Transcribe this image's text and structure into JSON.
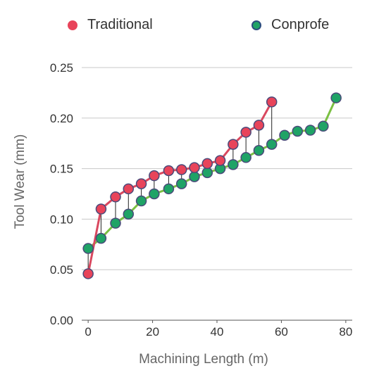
{
  "chart_data": {
    "type": "line",
    "xlabel": "Machining Length (m)",
    "ylabel": "Tool Wear (mm)",
    "xlim": [
      -2,
      82
    ],
    "ylim": [
      0,
      0.25
    ],
    "xticks": [
      0,
      20,
      40,
      60,
      80
    ],
    "yticks": [
      0.0,
      0.05,
      0.1,
      0.15,
      0.2,
      0.25
    ],
    "xtick_labels": [
      "0",
      "20",
      "40",
      "60",
      "80"
    ],
    "ytick_labels": [
      "0.00",
      "0.05",
      "0.10",
      "0.15",
      "0.20",
      "0.25"
    ],
    "grid": "horizontal",
    "legend_position": "top",
    "series": [
      {
        "name": "Traditional",
        "line_color": "#d9485f",
        "marker_color": "#e8445a",
        "x": [
          0,
          4,
          8.5,
          12.5,
          16.5,
          20.5,
          25,
          29,
          33,
          37,
          41,
          45,
          49,
          53,
          57
        ],
        "y": [
          0.046,
          0.11,
          0.122,
          0.13,
          0.135,
          0.143,
          0.148,
          0.149,
          0.151,
          0.155,
          0.158,
          0.174,
          0.186,
          0.193,
          0.216
        ]
      },
      {
        "name": "Conprofe",
        "line_color": "#7bc043",
        "marker_color": "#1fa366",
        "x": [
          0,
          4,
          8.5,
          12.5,
          16.5,
          20.5,
          25,
          29,
          33,
          37,
          41,
          45,
          49,
          53,
          57,
          61,
          65,
          69,
          73,
          77
        ],
        "y": [
          0.071,
          0.081,
          0.096,
          0.105,
          0.118,
          0.125,
          0.13,
          0.135,
          0.142,
          0.146,
          0.15,
          0.154,
          0.161,
          0.168,
          0.174,
          0.183,
          0.187,
          0.188,
          0.192,
          0.22
        ]
      }
    ]
  }
}
